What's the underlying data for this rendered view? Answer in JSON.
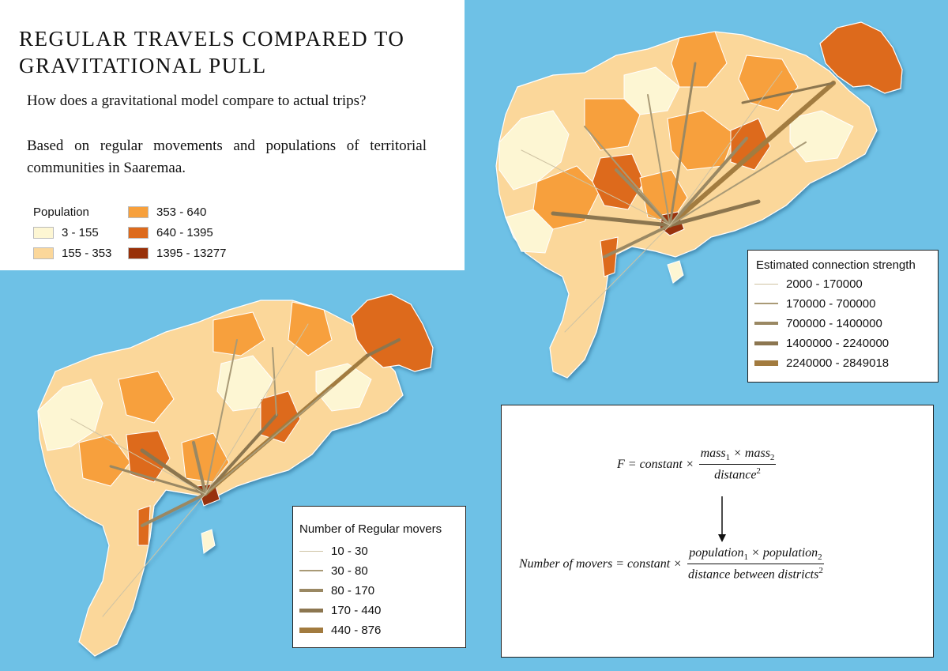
{
  "title": "REGULAR TRAVELS COMPARED TO GRAVITATIONAL PULL",
  "description": [
    "How does a gravitational model compare to actual trips?",
    "Based on regular movements and populations of territorial communities in Saaremaa."
  ],
  "population_legend": {
    "title": "Population",
    "classes": [
      {
        "label": "3 - 155",
        "color": "#fdf6d3"
      },
      {
        "label": "155 - 353",
        "color": "#fbd79a"
      },
      {
        "label": "353 - 640",
        "color": "#f7a03c"
      },
      {
        "label": "640 - 1395",
        "color": "#dd6a1c"
      },
      {
        "label": "1395 - 13277",
        "color": "#983008"
      }
    ]
  },
  "connection_legend": {
    "title": "Estimated connection strength",
    "classes": [
      "2000 - 170000",
      "170000 - 700000",
      "700000 - 1400000",
      "1400000 - 2240000",
      "2240000 - 2849018"
    ]
  },
  "movers_legend": {
    "title": "Number of Regular movers",
    "classes": [
      "10 - 30",
      "30 - 80",
      "80 - 170",
      "170 - 440",
      "440 - 876"
    ]
  },
  "line_colors": [
    "#cfc3a3",
    "#a99a76",
    "#9a8863",
    "#8c7650",
    "#a27b3f"
  ],
  "sea_color": "#6ec1e6",
  "formulas": {
    "general": {
      "lhs": "F = constant ×",
      "numerator": {
        "a": "mass",
        "a_sub": "1",
        "op": " × ",
        "b": "mass",
        "b_sub": "2"
      },
      "denominator": {
        "text": "distance",
        "sup": "2"
      }
    },
    "applied": {
      "lhs": "Number of movers = constant ×",
      "numerator": {
        "a": "population",
        "a_sub": "1",
        "op": " × ",
        "b": "population",
        "b_sub": "2"
      },
      "denominator": {
        "text": "distance between districts",
        "sup": "2"
      }
    }
  }
}
